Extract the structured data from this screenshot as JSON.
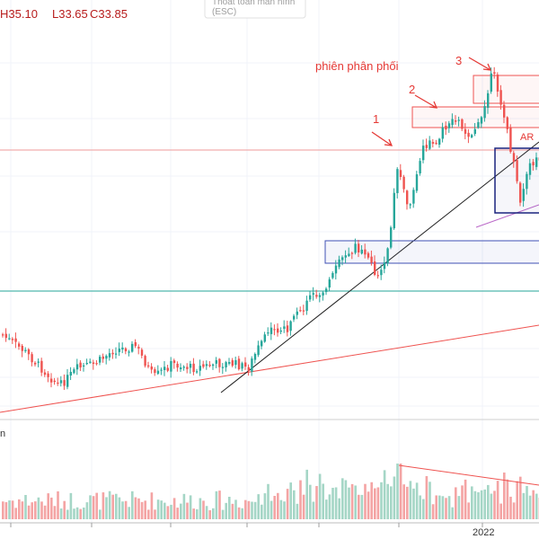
{
  "ohlc": {
    "high": "H35.10",
    "low": "L33.65",
    "close": "C33.85"
  },
  "toast": {
    "line1": "Thoát toàn màn hình",
    "line2": "(ESC)"
  },
  "annotations": {
    "distribution_label": "phiên phân phối",
    "marker1": "1",
    "marker2": "2",
    "marker3": "3",
    "ar_label": "AR"
  },
  "volume_pane": {
    "label": "n"
  },
  "time_axis": {
    "labels": [
      "2022"
    ]
  },
  "colors": {
    "up": "#26a69a",
    "down": "#ef5350",
    "up_volume": "#a5d6c6",
    "down_volume": "#f4a4a4",
    "support_trend": "#ef5350",
    "uptrend": "#212121",
    "resistance_line": "#ef9a9a",
    "support_line": "#26a69a",
    "box_red": "#ef5350",
    "box_blue": "#3f51b5",
    "box_navy": "#1a237e",
    "violet_line": "#ba68c8"
  }
}
